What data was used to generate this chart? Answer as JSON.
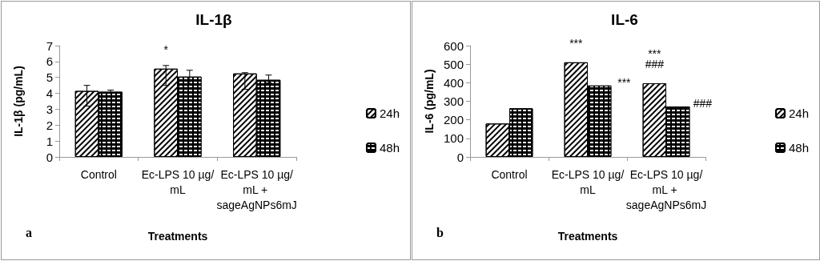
{
  "chart_data": [
    {
      "type": "bar",
      "title": "IL-1β",
      "xlabel": "Treatments",
      "ylabel": "IL-1β (pg/mL)",
      "categories": [
        "Control",
        "Ec-LPS 10 µg/mL",
        "Ec-LPS 10 µg/mL + sageAgNPs6mJ"
      ],
      "series": [
        {
          "name": "24h",
          "color": "#ffffff",
          "values": [
            4.15,
            5.55,
            5.25
          ],
          "errors": [
            [
              3.2,
              4.5
            ],
            [
              4.5,
              5.75
            ],
            [
              4.25,
              5.3
            ]
          ]
        },
        {
          "name": "48h",
          "color": "#000000",
          "values": [
            4.1,
            5.05,
            4.85
          ],
          "errors": [
            [
              4.0,
              4.2
            ],
            [
              4.6,
              5.45
            ],
            [
              4.65,
              5.15
            ]
          ]
        }
      ],
      "ylim": [
        0,
        7
      ],
      "yticks": [
        0,
        1,
        2,
        3,
        4,
        5,
        6,
        7
      ],
      "grid": false,
      "legend": "right",
      "annotations": [
        {
          "text": "*",
          "x": "Ec-LPS 10 µg/mL",
          "y": 5.55
        },
        "a"
      ]
    },
    {
      "type": "bar",
      "title": "IL-6",
      "xlabel": "Treatments",
      "ylabel": "IL-6 (pg/mL)",
      "categories": [
        "Control",
        "Ec-LPS 10 µg/mL",
        "Ec-LPS 10 µg/mL + sageAgNPs6mJ"
      ],
      "series": [
        {
          "name": "24h",
          "color": "#ffffff",
          "values": [
            180,
            510,
            397
          ]
        },
        {
          "name": "48h",
          "color": "#000000",
          "values": [
            262,
            385,
            272
          ]
        }
      ],
      "ylim": [
        0,
        600
      ],
      "yticks": [
        0,
        100,
        200,
        300,
        400,
        500,
        600
      ],
      "grid": false,
      "legend": "right",
      "annotations": [
        {
          "text": "***",
          "x": "Ec-LPS 10 µg/mL",
          "y": 510
        },
        {
          "text": "***",
          "x": "Ec-LPS 10 µg/mL",
          "y": 385
        },
        {
          "text": "***",
          "x": "Ec-LPS 10 µg/mL + sageAgNPs6mJ",
          "y": 397
        },
        {
          "text": "###",
          "x": "Ec-LPS 10 µg/mL + sageAgNPs6mJ",
          "y": 397
        },
        {
          "text": "###",
          "x": "Ec-LPS 10 µg/mL + sageAgNPs6mJ",
          "y": 272
        },
        "b"
      ]
    }
  ]
}
